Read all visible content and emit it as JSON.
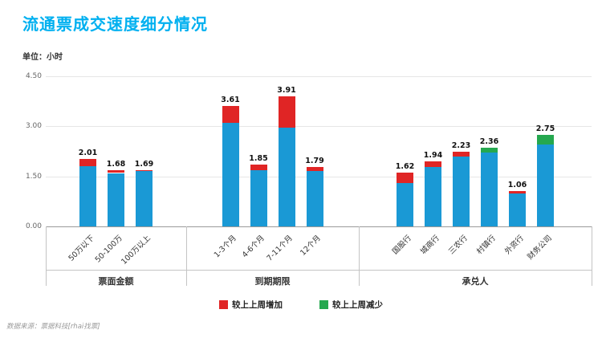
{
  "page": {
    "title": "流通票成交速度细分情况",
    "unit_label": "单位：小时",
    "source_note": "数据来源：票据科技[rhai找票]"
  },
  "legend": [
    {
      "label": "较上上周增加",
      "color": "#e02525"
    },
    {
      "label": "较上上周减少",
      "color": "#25a84f"
    }
  ],
  "colors": {
    "bar_blue": "#1a99d5",
    "increase_red": "#e02525",
    "decrease_green": "#25a84f",
    "title_cyan": "#00b0f0"
  },
  "chart_data": {
    "type": "bar",
    "stacked": true,
    "title": "流通票成交速度细分情况",
    "ylabel": "单位：小时",
    "ylim": [
      0,
      4.5
    ],
    "yticks": [
      0,
      1.5,
      3,
      4.5
    ],
    "grid": true,
    "legend_position": "bottom",
    "groups": [
      {
        "name": "票面金额",
        "bars": [
          {
            "label": "50万以下",
            "total": 2.01,
            "delta": 0.2,
            "delta_type": "increase"
          },
          {
            "label": "50-100万",
            "total": 1.68,
            "delta": 0.08,
            "delta_type": "increase"
          },
          {
            "label": "100万以上",
            "total": 1.69,
            "delta": 0.04,
            "delta_type": "increase"
          }
        ]
      },
      {
        "name": "到期期限",
        "bars": [
          {
            "label": "1-3个月",
            "total": 3.61,
            "delta": 0.5,
            "delta_type": "increase"
          },
          {
            "label": "4-6个月",
            "total": 1.85,
            "delta": 0.16,
            "delta_type": "increase"
          },
          {
            "label": "7-11个月",
            "total": 3.91,
            "delta": 0.95,
            "delta_type": "increase"
          },
          {
            "label": "12个月",
            "total": 1.79,
            "delta": 0.12,
            "delta_type": "increase"
          }
        ]
      },
      {
        "name": "承兑人",
        "bars": [
          {
            "label": "国股行",
            "total": 1.62,
            "delta": 0.32,
            "delta_type": "increase"
          },
          {
            "label": "城商行",
            "total": 1.94,
            "delta": 0.16,
            "delta_type": "increase"
          },
          {
            "label": "三农行",
            "total": 2.23,
            "delta": 0.14,
            "delta_type": "increase"
          },
          {
            "label": "村镇行",
            "total": 2.36,
            "delta": 0.14,
            "delta_type": "decrease"
          },
          {
            "label": "外资行",
            "total": 1.06,
            "delta": 0.07,
            "delta_type": "increase"
          },
          {
            "label": "财务公司",
            "total": 2.75,
            "delta": 0.3,
            "delta_type": "decrease"
          }
        ]
      }
    ]
  }
}
